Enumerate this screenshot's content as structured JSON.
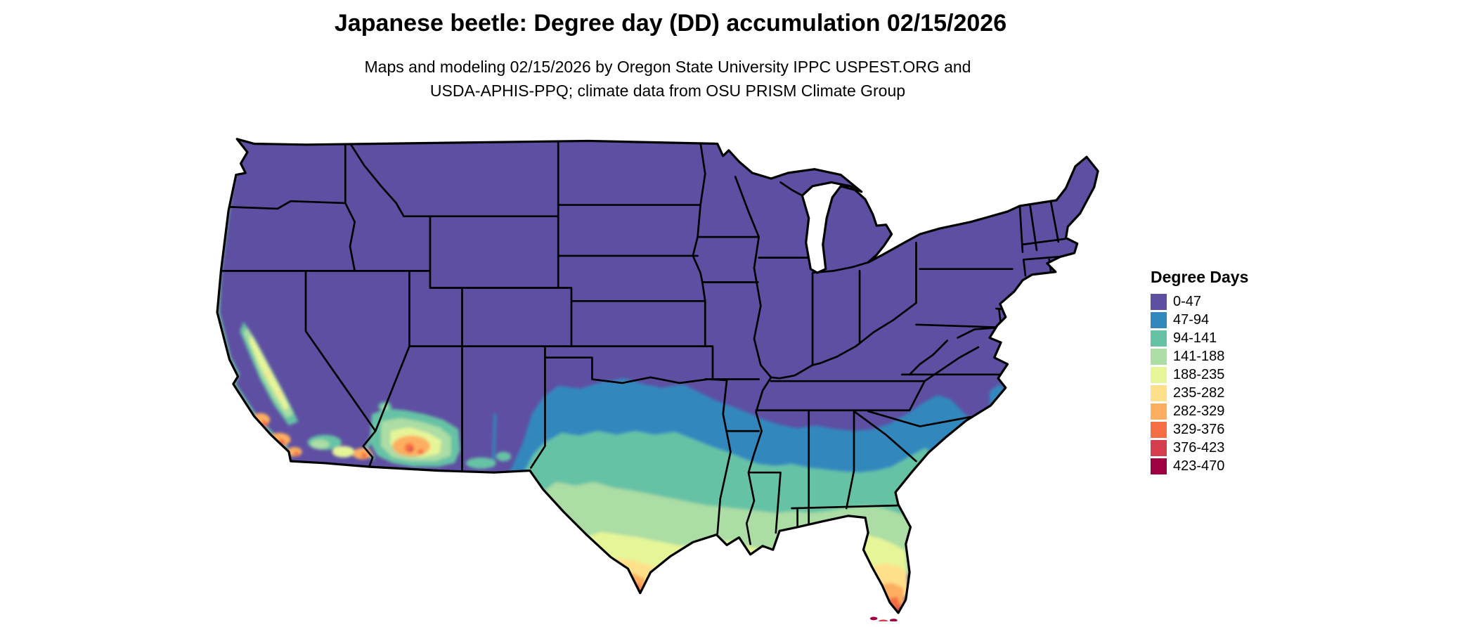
{
  "title": "Japanese beetle: Degree day (DD) accumulation 02/15/2026",
  "subtitle": {
    "line1": "Maps and modeling 02/15/2026 by Oregon State University IPPC USPEST.ORG and",
    "line2": "USDA-APHIS-PPQ; climate data from OSU PRISM Climate Group"
  },
  "legend": {
    "title": "Degree Days",
    "items": [
      {
        "label": "0-47",
        "color": "#5e4fa2"
      },
      {
        "label": "47-94",
        "color": "#3288bd"
      },
      {
        "label": "94-141",
        "color": "#66c2a5"
      },
      {
        "label": "141-188",
        "color": "#abdda4"
      },
      {
        "label": "188-235",
        "color": "#e6f598"
      },
      {
        "label": "235-282",
        "color": "#fee08b"
      },
      {
        "label": "282-329",
        "color": "#fdae61"
      },
      {
        "label": "329-376",
        "color": "#f46d43"
      },
      {
        "label": "376-423",
        "color": "#d53e4f"
      },
      {
        "label": "423-470",
        "color": "#9e0142"
      }
    ]
  }
}
